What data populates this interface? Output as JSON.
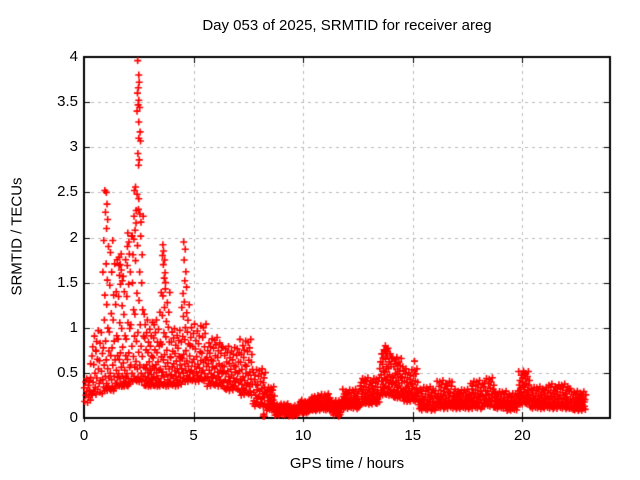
{
  "chart_data": {
    "type": "scatter",
    "title": "Day 053 of 2025, SRMTID for receiver areg",
    "xlabel": "GPS time / hours",
    "ylabel": "SRMTID / TECUs",
    "series_name": "SRMTID",
    "xlim": [
      0,
      24
    ],
    "ylim": [
      0,
      4
    ],
    "xticks": {
      "values": [
        0,
        5,
        10,
        15,
        20
      ],
      "labels": [
        "0",
        "5",
        "10",
        "15",
        "20"
      ]
    },
    "yticks": {
      "values": [
        0,
        0.5,
        1,
        1.5,
        2,
        2.5,
        3,
        3.5,
        4
      ],
      "labels": [
        "0",
        "0.5",
        "1",
        "1.5",
        "2",
        "2.5",
        "3",
        "3.5",
        "4"
      ]
    },
    "grid": {
      "show": true,
      "style": "dashed",
      "color": "#bbbbbb"
    },
    "legend": {
      "show": false
    },
    "marker": {
      "shape": "plus",
      "color": "#ff0000",
      "size": 7
    },
    "axis_color": "#000000",
    "data_x_max_hours": 22.9,
    "outlier_points": [
      [
        0.3,
        0.6
      ],
      [
        0.55,
        0.74
      ],
      [
        0.95,
        2.52
      ],
      [
        1.02,
        2.5
      ],
      [
        1.05,
        2.37
      ],
      [
        0.98,
        2.28
      ],
      [
        1.08,
        2.2
      ],
      [
        1.03,
        2.1
      ],
      [
        1.6,
        1.78
      ],
      [
        1.65,
        1.7
      ],
      [
        1.7,
        1.64
      ],
      [
        1.62,
        1.58
      ],
      [
        1.75,
        1.52
      ],
      [
        2.0,
        2.05
      ],
      [
        2.05,
        1.95
      ],
      [
        1.98,
        1.9
      ],
      [
        2.45,
        3.96
      ],
      [
        2.5,
        3.8
      ],
      [
        2.52,
        3.72
      ],
      [
        2.48,
        3.66
      ],
      [
        2.44,
        3.6
      ],
      [
        2.5,
        3.52
      ],
      [
        2.47,
        3.47
      ],
      [
        2.54,
        3.44
      ],
      [
        2.42,
        3.4
      ],
      [
        2.5,
        3.28
      ],
      [
        2.56,
        3.17
      ],
      [
        2.5,
        3.1
      ],
      [
        2.58,
        3.07
      ],
      [
        2.46,
        2.93
      ],
      [
        2.52,
        2.86
      ],
      [
        2.49,
        2.8
      ],
      [
        2.35,
        2.56
      ],
      [
        2.3,
        2.52
      ],
      [
        2.42,
        2.48
      ],
      [
        2.5,
        2.43
      ],
      [
        2.38,
        2.3
      ],
      [
        2.55,
        2.26
      ],
      [
        2.6,
        2.17
      ],
      [
        2.33,
        2.08
      ],
      [
        2.2,
        2.02
      ],
      [
        2.28,
        1.98
      ],
      [
        3.6,
        1.92
      ],
      [
        3.63,
        1.85
      ],
      [
        3.58,
        1.8
      ],
      [
        3.68,
        1.75
      ],
      [
        3.62,
        1.7
      ],
      [
        3.7,
        1.61
      ],
      [
        3.66,
        1.55
      ],
      [
        3.72,
        1.5
      ],
      [
        4.55,
        1.95
      ],
      [
        4.62,
        1.87
      ],
      [
        4.57,
        1.75
      ],
      [
        4.65,
        1.62
      ],
      [
        4.6,
        1.52
      ],
      [
        4.68,
        1.45
      ],
      [
        4.52,
        1.38
      ],
      [
        8.18,
        0.02
      ],
      [
        8.2,
        0.04
      ],
      [
        8.23,
        0.02
      ],
      [
        11.62,
        0.02
      ],
      [
        11.67,
        0.04
      ],
      [
        13.75,
        0.8
      ],
      [
        13.82,
        0.76
      ],
      [
        13.78,
        0.72
      ],
      [
        15.08,
        0.63
      ],
      [
        20.05,
        0.52
      ],
      [
        20.1,
        0.49
      ]
    ],
    "cloud_bands": [
      {
        "x0": 0.0,
        "x1": 0.35,
        "n": 14,
        "ylo": 0.15,
        "yhi": 0.45,
        "bias": 1.0
      },
      {
        "x0": 0.35,
        "x1": 0.85,
        "n": 26,
        "ylo": 0.25,
        "yhi": 1.0,
        "bias": 1.4
      },
      {
        "x0": 0.85,
        "x1": 1.45,
        "n": 48,
        "ylo": 0.3,
        "yhi": 2.0,
        "bias": 2.0
      },
      {
        "x0": 1.45,
        "x1": 2.1,
        "n": 55,
        "ylo": 0.35,
        "yhi": 1.85,
        "bias": 2.2
      },
      {
        "x0": 2.1,
        "x1": 2.75,
        "n": 50,
        "ylo": 0.4,
        "yhi": 2.35,
        "bias": 2.0
      },
      {
        "x0": 2.75,
        "x1": 3.45,
        "n": 55,
        "ylo": 0.35,
        "yhi": 1.1,
        "bias": 1.8
      },
      {
        "x0": 3.45,
        "x1": 3.95,
        "n": 40,
        "ylo": 0.35,
        "yhi": 1.45,
        "bias": 1.8
      },
      {
        "x0": 3.95,
        "x1": 4.45,
        "n": 35,
        "ylo": 0.35,
        "yhi": 1.0,
        "bias": 1.5
      },
      {
        "x0": 4.45,
        "x1": 4.85,
        "n": 30,
        "ylo": 0.4,
        "yhi": 1.3,
        "bias": 1.7
      },
      {
        "x0": 4.85,
        "x1": 5.6,
        "n": 45,
        "ylo": 0.4,
        "yhi": 1.05,
        "bias": 1.5
      },
      {
        "x0": 5.6,
        "x1": 6.3,
        "n": 45,
        "ylo": 0.35,
        "yhi": 0.9,
        "bias": 1.4
      },
      {
        "x0": 6.3,
        "x1": 7.1,
        "n": 48,
        "ylo": 0.3,
        "yhi": 0.8,
        "bias": 1.3
      },
      {
        "x0": 7.1,
        "x1": 7.7,
        "n": 40,
        "ylo": 0.25,
        "yhi": 0.88,
        "bias": 1.4
      },
      {
        "x0": 7.7,
        "x1": 8.3,
        "n": 35,
        "ylo": 0.12,
        "yhi": 0.55,
        "bias": 1.2
      },
      {
        "x0": 8.3,
        "x1": 8.7,
        "n": 25,
        "ylo": 0.08,
        "yhi": 0.35,
        "bias": 1.3
      },
      {
        "x0": 8.7,
        "x1": 9.3,
        "n": 30,
        "ylo": 0.03,
        "yhi": 0.16,
        "bias": 1.2
      },
      {
        "x0": 9.3,
        "x1": 9.8,
        "n": 25,
        "ylo": 0.02,
        "yhi": 0.14,
        "bias": 1.2
      },
      {
        "x0": 9.8,
        "x1": 10.3,
        "n": 25,
        "ylo": 0.05,
        "yhi": 0.2,
        "bias": 1.2
      },
      {
        "x0": 10.3,
        "x1": 10.6,
        "n": 18,
        "ylo": 0.08,
        "yhi": 0.24,
        "bias": 1.2
      },
      {
        "x0": 10.6,
        "x1": 11.3,
        "n": 35,
        "ylo": 0.08,
        "yhi": 0.27,
        "bias": 1.2
      },
      {
        "x0": 11.3,
        "x1": 11.75,
        "n": 22,
        "ylo": 0.03,
        "yhi": 0.2,
        "bias": 1.2
      },
      {
        "x0": 11.75,
        "x1": 12.6,
        "n": 45,
        "ylo": 0.1,
        "yhi": 0.32,
        "bias": 1.2
      },
      {
        "x0": 12.6,
        "x1": 13.5,
        "n": 55,
        "ylo": 0.15,
        "yhi": 0.45,
        "bias": 1.3
      },
      {
        "x0": 13.5,
        "x1": 14.05,
        "n": 45,
        "ylo": 0.25,
        "yhi": 0.78,
        "bias": 1.5
      },
      {
        "x0": 14.05,
        "x1": 14.55,
        "n": 40,
        "ylo": 0.22,
        "yhi": 0.68,
        "bias": 1.5
      },
      {
        "x0": 14.55,
        "x1": 15.25,
        "n": 45,
        "ylo": 0.18,
        "yhi": 0.55,
        "bias": 1.4
      },
      {
        "x0": 15.25,
        "x1": 16.1,
        "n": 45,
        "ylo": 0.08,
        "yhi": 0.35,
        "bias": 1.2
      },
      {
        "x0": 16.1,
        "x1": 16.8,
        "n": 40,
        "ylo": 0.1,
        "yhi": 0.42,
        "bias": 1.3
      },
      {
        "x0": 16.8,
        "x1": 17.6,
        "n": 45,
        "ylo": 0.1,
        "yhi": 0.32,
        "bias": 1.2
      },
      {
        "x0": 17.6,
        "x1": 18.2,
        "n": 35,
        "ylo": 0.1,
        "yhi": 0.42,
        "bias": 1.3
      },
      {
        "x0": 18.2,
        "x1": 18.75,
        "n": 30,
        "ylo": 0.12,
        "yhi": 0.45,
        "bias": 1.3
      },
      {
        "x0": 18.75,
        "x1": 19.3,
        "n": 28,
        "ylo": 0.1,
        "yhi": 0.3,
        "bias": 1.2
      },
      {
        "x0": 19.3,
        "x1": 19.8,
        "n": 27,
        "ylo": 0.08,
        "yhi": 0.28,
        "bias": 1.2
      },
      {
        "x0": 19.8,
        "x1": 20.35,
        "n": 40,
        "ylo": 0.15,
        "yhi": 0.52,
        "bias": 1.4
      },
      {
        "x0": 20.35,
        "x1": 21.2,
        "n": 50,
        "ylo": 0.1,
        "yhi": 0.35,
        "bias": 1.2
      },
      {
        "x0": 21.2,
        "x1": 22.2,
        "n": 55,
        "ylo": 0.1,
        "yhi": 0.38,
        "bias": 1.3
      },
      {
        "x0": 22.2,
        "x1": 22.9,
        "n": 40,
        "ylo": 0.08,
        "yhi": 0.3,
        "bias": 1.2
      }
    ],
    "jitter_y": [
      0.62,
      0.11,
      0.83,
      0.34,
      0.95,
      0.48,
      0.07,
      0.71,
      0.27,
      0.88,
      0.53,
      0.16,
      0.99,
      0.41,
      0.68,
      0.02,
      0.79,
      0.31,
      0.57,
      0.13,
      0.91,
      0.45,
      0.22,
      0.75,
      0.05,
      0.85,
      0.38,
      0.64,
      0.18,
      0.97,
      0.51,
      0.29
    ],
    "jitter_x": [
      0.12,
      -0.33,
      0.41,
      -0.08,
      0.27,
      -0.47,
      0.05,
      0.36,
      -0.19,
      0.49,
      -0.02,
      0.22,
      -0.41,
      0.15,
      0.33,
      -0.26,
      0.08,
      -0.14,
      0.45,
      -0.37,
      0.02,
      0.29,
      -0.11,
      0.39,
      -0.23,
      0.17,
      -0.45,
      0.09,
      -0.29
    ]
  }
}
